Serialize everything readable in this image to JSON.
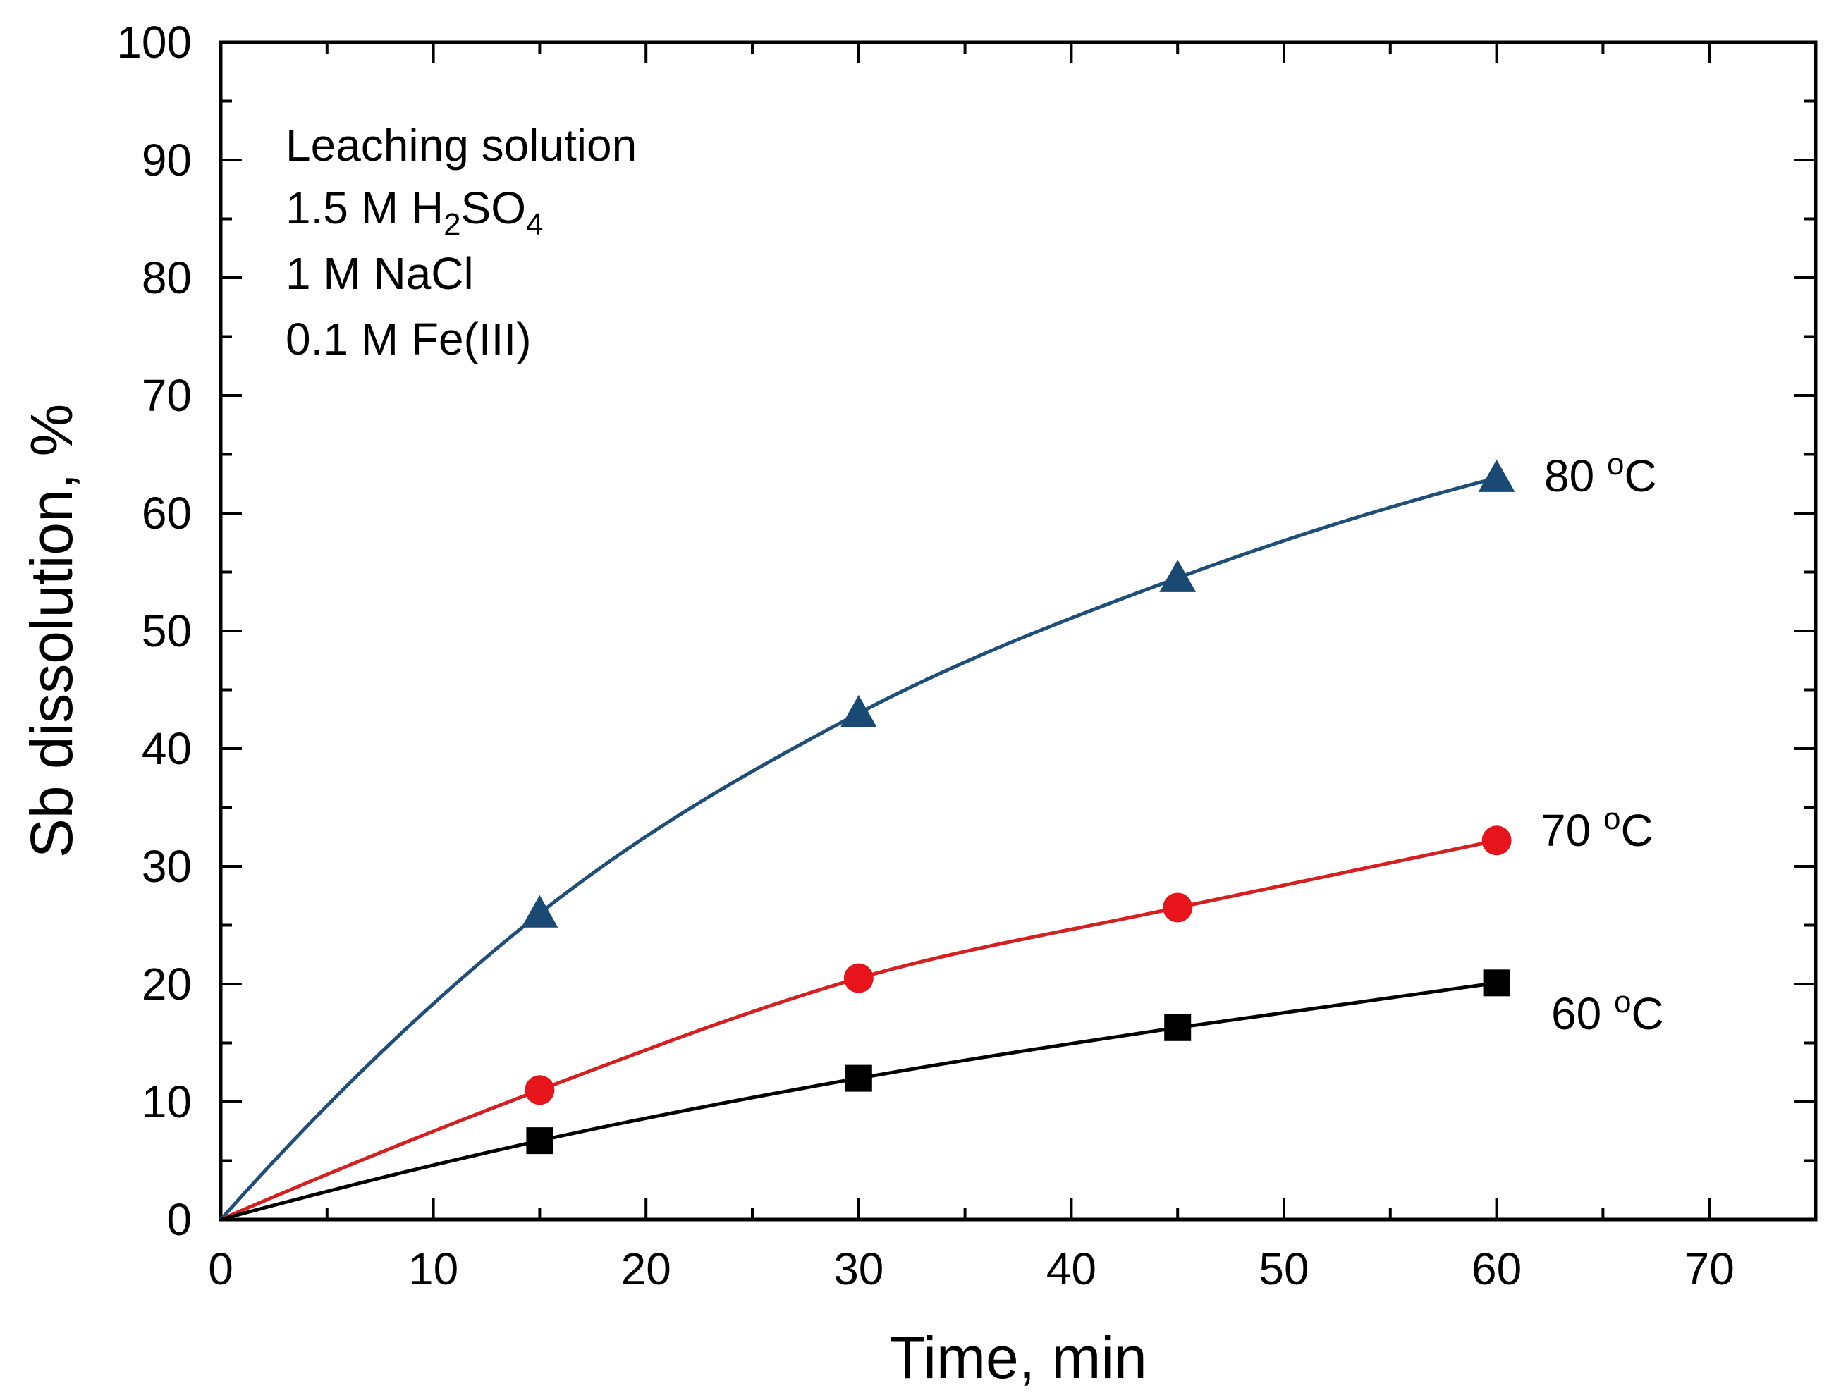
{
  "chart_data": {
    "type": "line",
    "xlabel": "Time, min",
    "ylabel": "Sb dissolution, %",
    "xlim": [
      0,
      75
    ],
    "ylim": [
      0,
      100
    ],
    "x_ticks": [
      0,
      10,
      20,
      30,
      40,
      50,
      60,
      70
    ],
    "y_ticks": [
      0,
      10,
      20,
      30,
      40,
      50,
      60,
      70,
      80,
      90,
      100
    ],
    "grid": false,
    "annotation": {
      "title": "Leaching solution",
      "lines": [
        {
          "parts": [
            {
              "text": "1.5 M H"
            },
            {
              "text": "2",
              "sub": true
            },
            {
              "text": "SO"
            },
            {
              "text": "4",
              "sub": true
            }
          ]
        },
        {
          "parts": [
            {
              "text": "1 M NaCl"
            }
          ]
        },
        {
          "parts": [
            {
              "text": "0.1 M Fe(III)"
            }
          ]
        }
      ]
    },
    "series": [
      {
        "name": "80 °C",
        "label_parts": [
          "80 ",
          "o",
          "C"
        ],
        "marker": "triangle",
        "color": "#1a4a74",
        "line_color": "#1f4e79",
        "x": [
          0,
          15,
          30,
          45,
          60
        ],
        "y": [
          0,
          26,
          43,
          54.5,
          63
        ]
      },
      {
        "name": "70 °C",
        "label_parts": [
          "70 ",
          "o",
          "C"
        ],
        "marker": "circle",
        "color": "#e8141c",
        "line_color": "#d42020",
        "x": [
          0,
          15,
          30,
          45,
          60
        ],
        "y": [
          0,
          11,
          20.5,
          26.5,
          32.2
        ]
      },
      {
        "name": "60 °C",
        "label_parts": [
          "60 ",
          "o",
          "C"
        ],
        "marker": "square",
        "color": "#000000",
        "line_color": "#000000",
        "x": [
          0,
          15,
          30,
          45,
          60
        ],
        "y": [
          0,
          6.7,
          12,
          16.3,
          20.1
        ]
      }
    ]
  }
}
